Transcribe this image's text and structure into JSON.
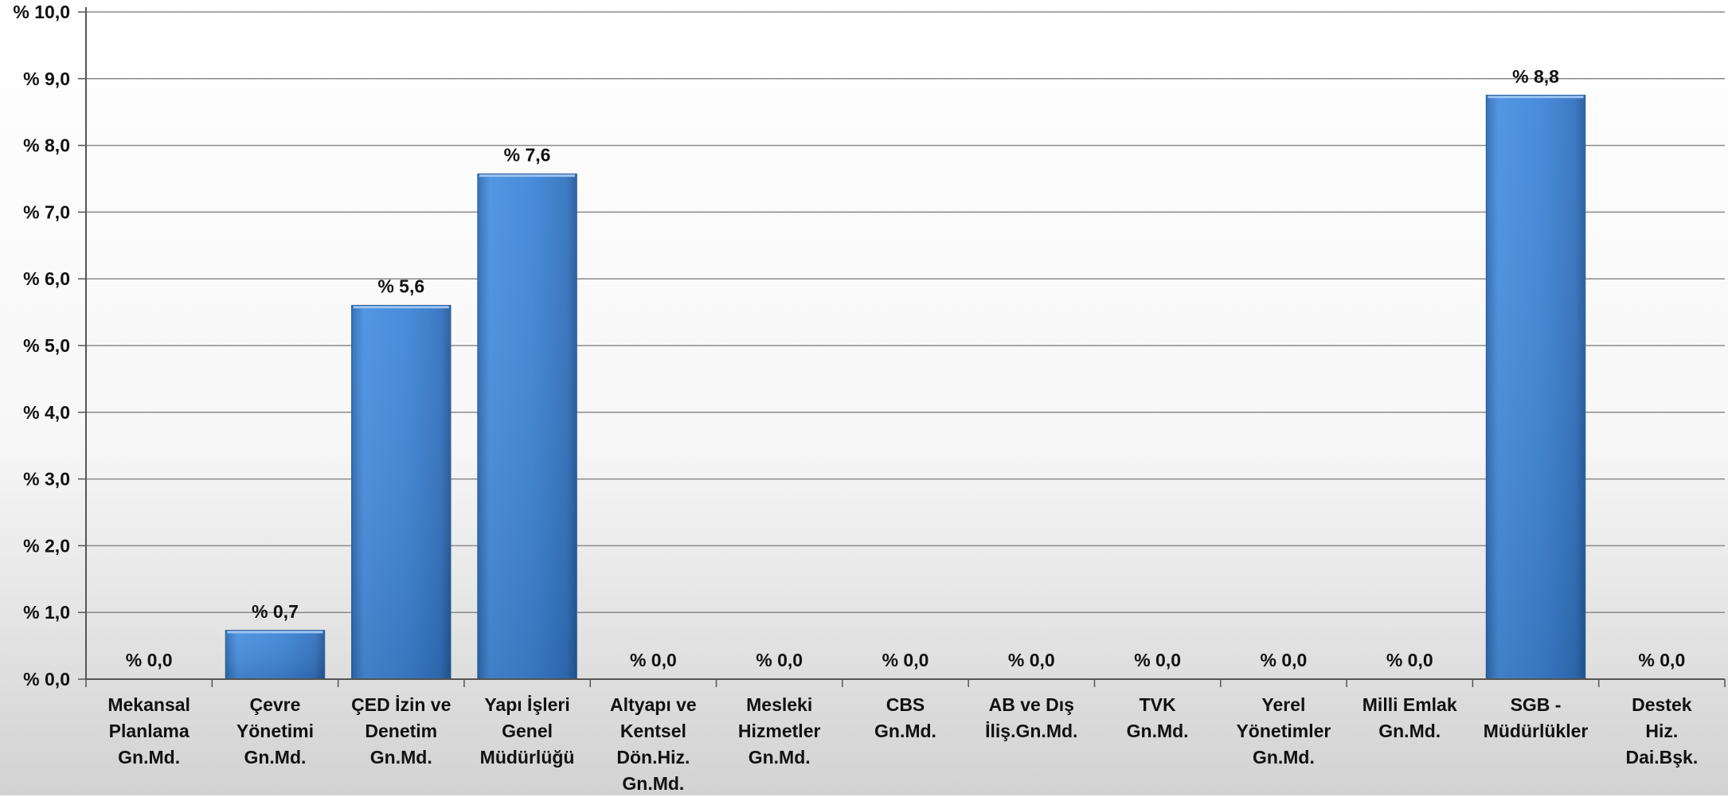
{
  "chart_data": {
    "type": "bar",
    "title": "",
    "xlabel": "",
    "ylabel": "",
    "ylim": [
      0,
      10
    ],
    "ytick_step": 1,
    "grid": true,
    "legend": "none",
    "bar_color": "#3f86d8",
    "bar_edge_color": "#2c5f9e",
    "categories": [
      "Mekansal\nPlanlama\nGn.Md.",
      "Çevre\nYönetimi\nGn.Md.",
      "ÇED İzin ve\nDenetim\nGn.Md.",
      "Yapı İşleri\nGenel\nMüdürlüğü",
      "Altyapı ve\nKentsel\nDön.Hiz.\nGn.Md.",
      "Mesleki\nHizmetler\nGn.Md.",
      "CBS\nGn.Md.",
      "AB ve Dış\nİliş.Gn.Md.",
      "TVK\nGn.Md.",
      "Yerel\nYönetimler\nGn.Md.",
      "Milli Emlak\nGn.Md.",
      "SGB -\nMüdürlükler",
      "Destek\nHiz.\nDai.Bşk."
    ],
    "values": [
      0.0,
      0.73,
      5.6,
      7.57,
      0.0,
      0.0,
      0.0,
      0.0,
      0.0,
      0.0,
      0.0,
      8.75,
      0.0
    ],
    "data_labels": [
      "% 0,0",
      "% 0,7",
      "% 5,6",
      "% 7,6",
      "% 0,0",
      "% 0,0",
      "% 0,0",
      "% 0,0",
      "% 0,0",
      "% 0,0",
      "% 0,0",
      "% 8,8",
      "% 0,0"
    ],
    "ytick_labels": [
      "% 0,0",
      "% 1,0",
      "% 2,0",
      "% 3,0",
      "% 4,0",
      "% 5,0",
      "% 6,0",
      "% 7,0",
      "% 8,0",
      "% 9,0",
      "% 10,0"
    ]
  }
}
